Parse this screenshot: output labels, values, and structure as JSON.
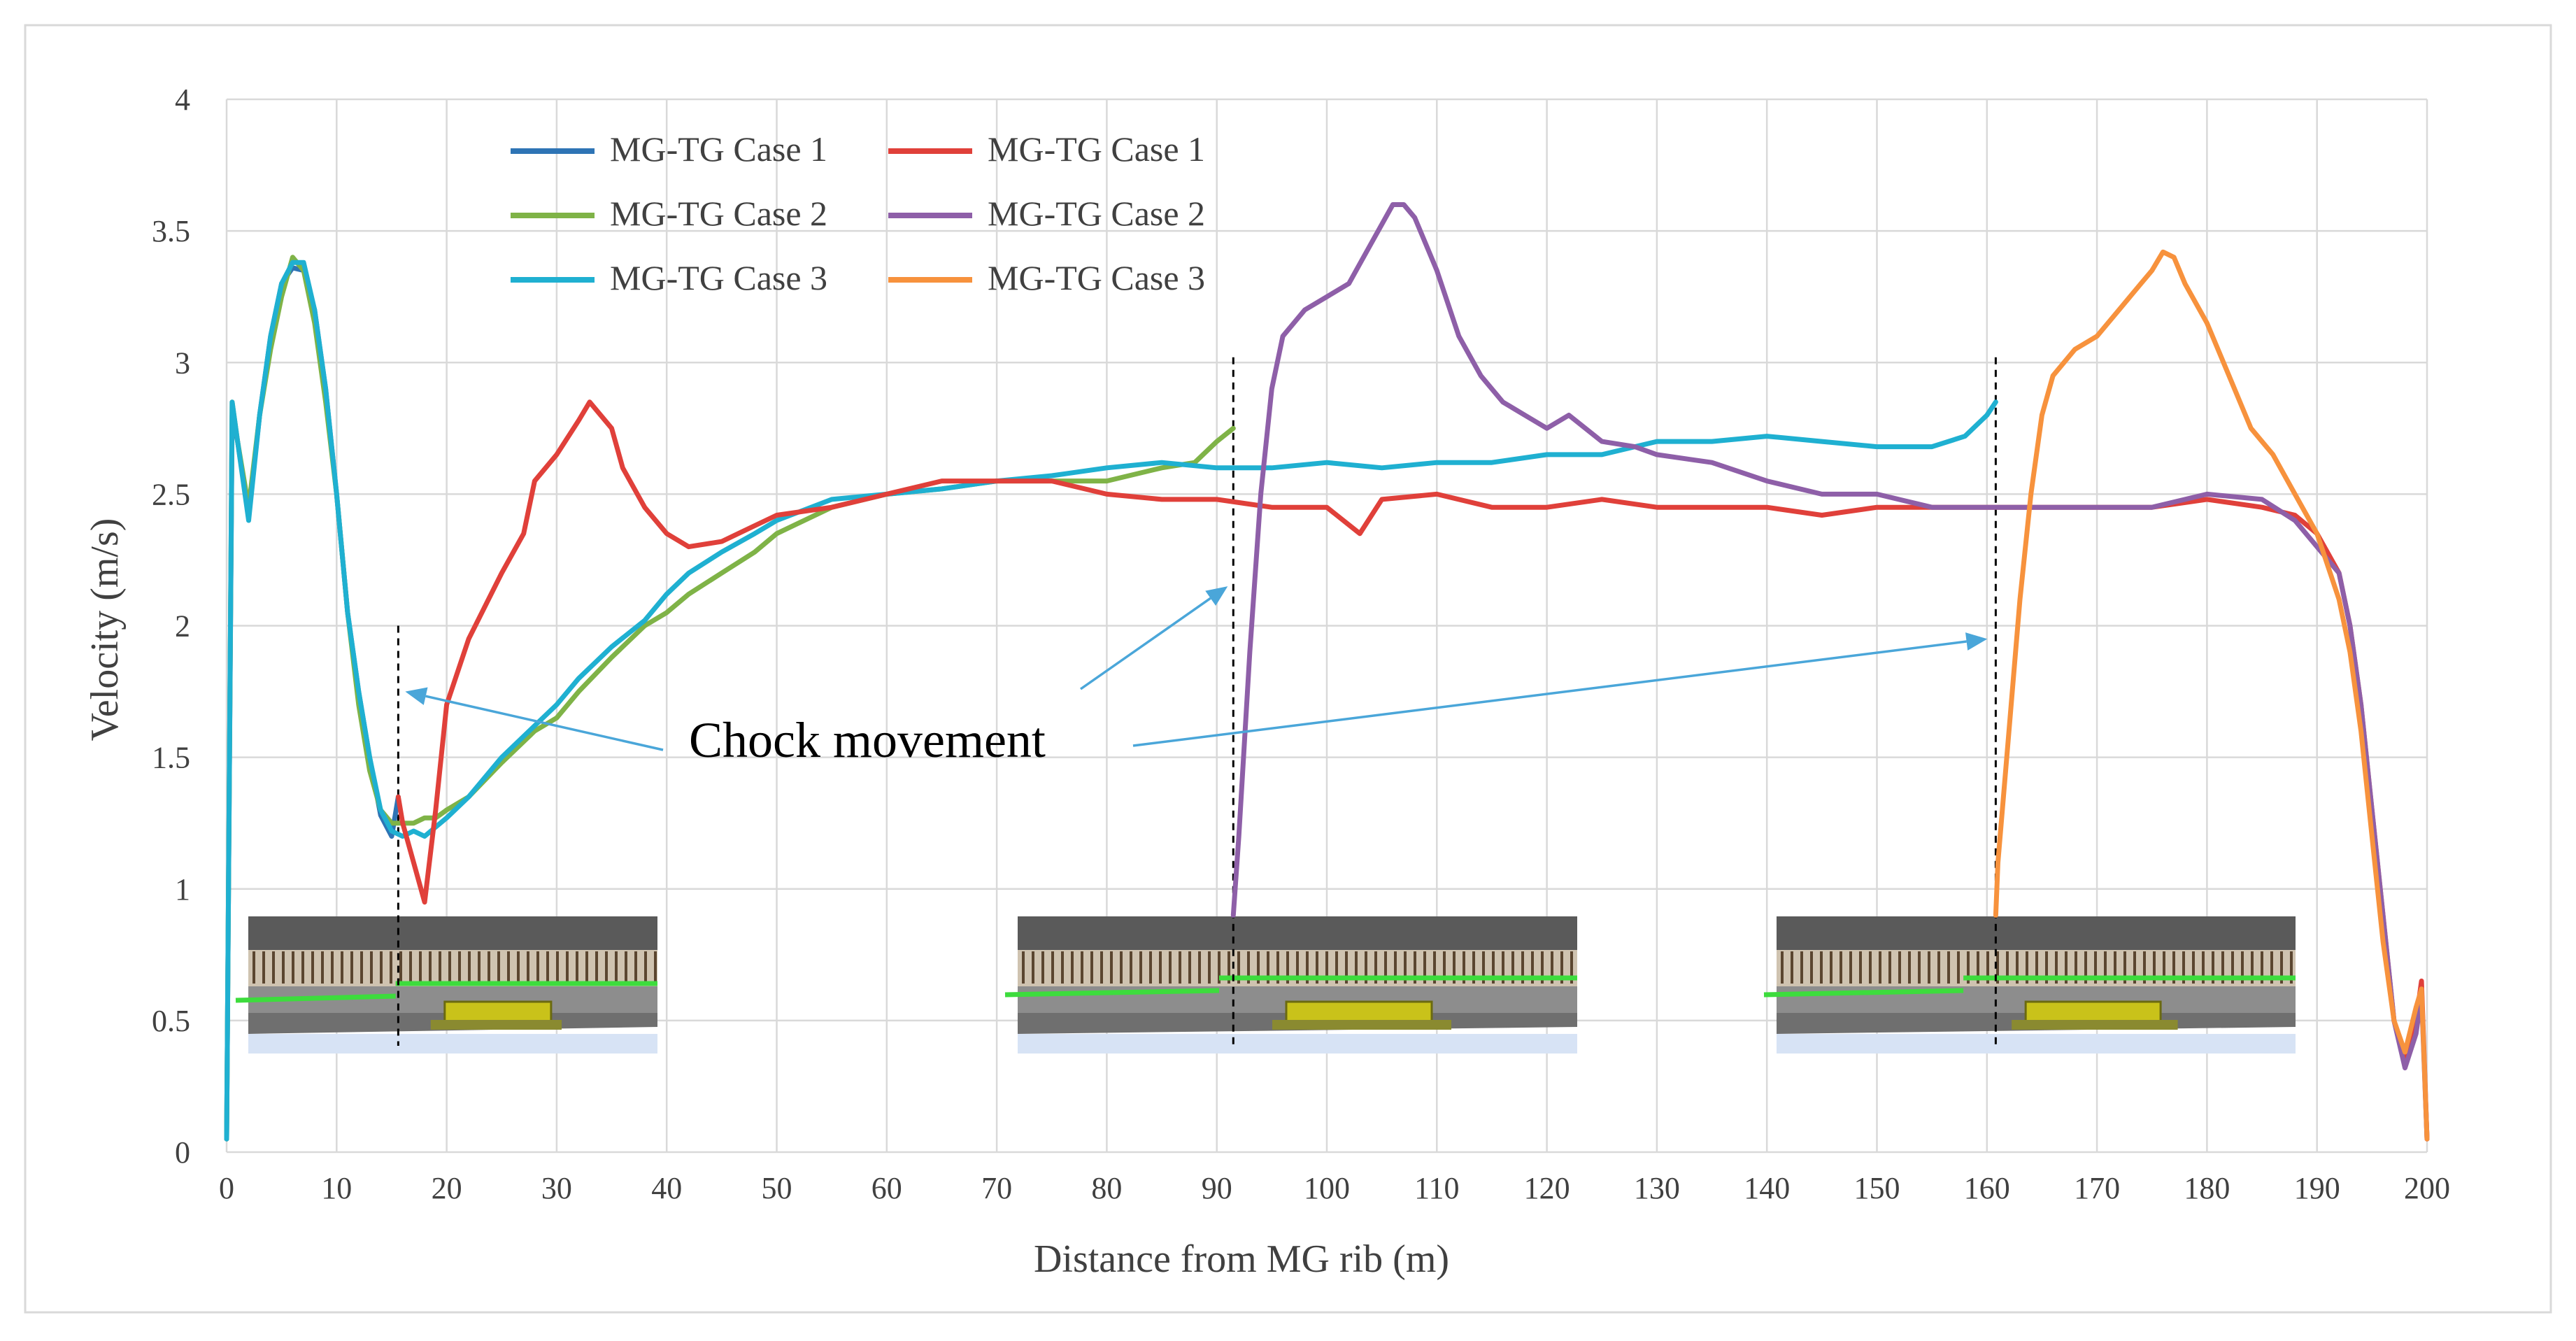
{
  "chart_data": {
    "type": "line",
    "title": "",
    "xlabel": "Distance from MG rib (m)",
    "ylabel": "Velocity (m/s)",
    "xlim": [
      0,
      200
    ],
    "ylim": [
      0,
      4
    ],
    "x_ticks": [
      "0",
      "10",
      "20",
      "30",
      "40",
      "50",
      "60",
      "70",
      "80",
      "90",
      "100",
      "110",
      "120",
      "130",
      "140",
      "150",
      "160",
      "170",
      "180",
      "190",
      "200"
    ],
    "y_ticks": [
      "0",
      "0.5",
      "1",
      "1.5",
      "2",
      "2.5",
      "3",
      "3.5",
      "4"
    ],
    "grid": true,
    "legend_position": "top-left",
    "series": [
      {
        "name": "MG-TG Case 1",
        "color": "#2e74b5",
        "points": [
          [
            0,
            0.05
          ],
          [
            0.5,
            2.8
          ],
          [
            1,
            2.7
          ],
          [
            2,
            2.42
          ],
          [
            3,
            2.8
          ],
          [
            4,
            3.1
          ],
          [
            5,
            3.3
          ],
          [
            6,
            3.36
          ],
          [
            7,
            3.35
          ],
          [
            8,
            3.2
          ],
          [
            9,
            2.9
          ],
          [
            10,
            2.5
          ],
          [
            11,
            2.05
          ],
          [
            12,
            1.75
          ],
          [
            13,
            1.5
          ],
          [
            14,
            1.28
          ],
          [
            15,
            1.2
          ],
          [
            15.6,
            1.35
          ]
        ]
      },
      {
        "name": "MG-TG Case 2",
        "color": "#7fb347",
        "points": [
          [
            0,
            0.05
          ],
          [
            0.5,
            2.85
          ],
          [
            1,
            2.7
          ],
          [
            2,
            2.45
          ],
          [
            3,
            2.8
          ],
          [
            4,
            3.05
          ],
          [
            5,
            3.25
          ],
          [
            6,
            3.4
          ],
          [
            7,
            3.35
          ],
          [
            8,
            3.15
          ],
          [
            9,
            2.85
          ],
          [
            10,
            2.5
          ],
          [
            11,
            2.05
          ],
          [
            12,
            1.7
          ],
          [
            13,
            1.45
          ],
          [
            14,
            1.3
          ],
          [
            15,
            1.25
          ],
          [
            16,
            1.25
          ],
          [
            17,
            1.25
          ],
          [
            18,
            1.27
          ],
          [
            19,
            1.27
          ],
          [
            20,
            1.3
          ],
          [
            22,
            1.35
          ],
          [
            25,
            1.48
          ],
          [
            28,
            1.6
          ],
          [
            30,
            1.65
          ],
          [
            32,
            1.75
          ],
          [
            35,
            1.88
          ],
          [
            38,
            2.0
          ],
          [
            40,
            2.05
          ],
          [
            42,
            2.12
          ],
          [
            45,
            2.2
          ],
          [
            48,
            2.28
          ],
          [
            50,
            2.35
          ],
          [
            55,
            2.45
          ],
          [
            60,
            2.5
          ],
          [
            65,
            2.52
          ],
          [
            70,
            2.55
          ],
          [
            75,
            2.55
          ],
          [
            80,
            2.55
          ],
          [
            85,
            2.6
          ],
          [
            88,
            2.62
          ],
          [
            90,
            2.7
          ],
          [
            91.5,
            2.75
          ]
        ]
      },
      {
        "name": "MG-TG Case 3",
        "color": "#1fb0d1",
        "points": [
          [
            0,
            0.05
          ],
          [
            0.5,
            2.85
          ],
          [
            1,
            2.7
          ],
          [
            2,
            2.4
          ],
          [
            3,
            2.8
          ],
          [
            4,
            3.1
          ],
          [
            5,
            3.3
          ],
          [
            6,
            3.38
          ],
          [
            7,
            3.38
          ],
          [
            8,
            3.2
          ],
          [
            9,
            2.9
          ],
          [
            10,
            2.5
          ],
          [
            11,
            2.05
          ],
          [
            12,
            1.75
          ],
          [
            13,
            1.5
          ],
          [
            14,
            1.3
          ],
          [
            15,
            1.22
          ],
          [
            16,
            1.2
          ],
          [
            17,
            1.22
          ],
          [
            18,
            1.2
          ],
          [
            20,
            1.27
          ],
          [
            22,
            1.35
          ],
          [
            25,
            1.5
          ],
          [
            28,
            1.62
          ],
          [
            30,
            1.7
          ],
          [
            32,
            1.8
          ],
          [
            35,
            1.92
          ],
          [
            38,
            2.02
          ],
          [
            40,
            2.12
          ],
          [
            42,
            2.2
          ],
          [
            45,
            2.28
          ],
          [
            48,
            2.35
          ],
          [
            50,
            2.4
          ],
          [
            55,
            2.48
          ],
          [
            60,
            2.5
          ],
          [
            65,
            2.52
          ],
          [
            70,
            2.55
          ],
          [
            75,
            2.57
          ],
          [
            80,
            2.6
          ],
          [
            85,
            2.62
          ],
          [
            90,
            2.6
          ],
          [
            95,
            2.6
          ],
          [
            100,
            2.62
          ],
          [
            105,
            2.6
          ],
          [
            110,
            2.62
          ],
          [
            115,
            2.62
          ],
          [
            120,
            2.65
          ],
          [
            125,
            2.65
          ],
          [
            130,
            2.7
          ],
          [
            135,
            2.7
          ],
          [
            140,
            2.72
          ],
          [
            145,
            2.7
          ],
          [
            150,
            2.68
          ],
          [
            155,
            2.68
          ],
          [
            158,
            2.72
          ],
          [
            160,
            2.8
          ],
          [
            160.8,
            2.85
          ]
        ]
      },
      {
        "name": "MG-TG Case 1",
        "color": "#e0403a",
        "points": [
          [
            15.6,
            1.35
          ],
          [
            16,
            1.25
          ],
          [
            17,
            1.1
          ],
          [
            18,
            0.95
          ],
          [
            19,
            1.3
          ],
          [
            20,
            1.7
          ],
          [
            22,
            1.95
          ],
          [
            25,
            2.2
          ],
          [
            27,
            2.35
          ],
          [
            28,
            2.55
          ],
          [
            30,
            2.65
          ],
          [
            32,
            2.78
          ],
          [
            33,
            2.85
          ],
          [
            34,
            2.8
          ],
          [
            35,
            2.75
          ],
          [
            36,
            2.6
          ],
          [
            38,
            2.45
          ],
          [
            40,
            2.35
          ],
          [
            42,
            2.3
          ],
          [
            45,
            2.32
          ],
          [
            48,
            2.38
          ],
          [
            50,
            2.42
          ],
          [
            55,
            2.45
          ],
          [
            60,
            2.5
          ],
          [
            65,
            2.55
          ],
          [
            70,
            2.55
          ],
          [
            75,
            2.55
          ],
          [
            80,
            2.5
          ],
          [
            85,
            2.48
          ],
          [
            90,
            2.48
          ],
          [
            95,
            2.45
          ],
          [
            100,
            2.45
          ],
          [
            103,
            2.35
          ],
          [
            105,
            2.48
          ],
          [
            110,
            2.5
          ],
          [
            115,
            2.45
          ],
          [
            120,
            2.45
          ],
          [
            125,
            2.48
          ],
          [
            130,
            2.45
          ],
          [
            135,
            2.45
          ],
          [
            140,
            2.45
          ],
          [
            145,
            2.42
          ],
          [
            150,
            2.45
          ],
          [
            155,
            2.45
          ],
          [
            160,
            2.45
          ],
          [
            165,
            2.45
          ],
          [
            170,
            2.45
          ],
          [
            175,
            2.45
          ],
          [
            180,
            2.48
          ],
          [
            185,
            2.45
          ],
          [
            188,
            2.42
          ],
          [
            190,
            2.35
          ],
          [
            192,
            2.2
          ],
          [
            193,
            2.0
          ],
          [
            194,
            1.7
          ],
          [
            195,
            1.3
          ],
          [
            196,
            0.9
          ],
          [
            197,
            0.5
          ],
          [
            198,
            0.35
          ],
          [
            199,
            0.5
          ],
          [
            199.5,
            0.65
          ],
          [
            200,
            0.05
          ]
        ]
      },
      {
        "name": "MG-TG Case 2",
        "color": "#8e5fa8",
        "points": [
          [
            91.5,
            0.9
          ],
          [
            92,
            1.2
          ],
          [
            93,
            1.9
          ],
          [
            94,
            2.5
          ],
          [
            95,
            2.9
          ],
          [
            96,
            3.1
          ],
          [
            98,
            3.2
          ],
          [
            100,
            3.25
          ],
          [
            102,
            3.3
          ],
          [
            104,
            3.45
          ],
          [
            106,
            3.6
          ],
          [
            107,
            3.6
          ],
          [
            108,
            3.55
          ],
          [
            110,
            3.35
          ],
          [
            112,
            3.1
          ],
          [
            114,
            2.95
          ],
          [
            116,
            2.85
          ],
          [
            118,
            2.8
          ],
          [
            120,
            2.75
          ],
          [
            122,
            2.8
          ],
          [
            125,
            2.7
          ],
          [
            128,
            2.68
          ],
          [
            130,
            2.65
          ],
          [
            135,
            2.62
          ],
          [
            140,
            2.55
          ],
          [
            145,
            2.5
          ],
          [
            150,
            2.5
          ],
          [
            155,
            2.45
          ],
          [
            160,
            2.45
          ],
          [
            165,
            2.45
          ],
          [
            170,
            2.45
          ],
          [
            175,
            2.45
          ],
          [
            180,
            2.5
          ],
          [
            185,
            2.48
          ],
          [
            188,
            2.4
          ],
          [
            190,
            2.3
          ],
          [
            192,
            2.2
          ],
          [
            193,
            2.0
          ],
          [
            194,
            1.7
          ],
          [
            195,
            1.3
          ],
          [
            196,
            0.9
          ],
          [
            197,
            0.5
          ],
          [
            198,
            0.32
          ],
          [
            199,
            0.45
          ],
          [
            199.5,
            0.6
          ],
          [
            200,
            0.05
          ]
        ]
      },
      {
        "name": "MG-TG Case 3",
        "color": "#f7923d",
        "points": [
          [
            160.8,
            0.9
          ],
          [
            161,
            1.1
          ],
          [
            162,
            1.6
          ],
          [
            163,
            2.1
          ],
          [
            164,
            2.5
          ],
          [
            165,
            2.8
          ],
          [
            166,
            2.95
          ],
          [
            168,
            3.05
          ],
          [
            170,
            3.1
          ],
          [
            172,
            3.2
          ],
          [
            174,
            3.3
          ],
          [
            175,
            3.35
          ],
          [
            176,
            3.42
          ],
          [
            177,
            3.4
          ],
          [
            178,
            3.3
          ],
          [
            180,
            3.15
          ],
          [
            182,
            2.95
          ],
          [
            184,
            2.75
          ],
          [
            186,
            2.65
          ],
          [
            188,
            2.5
          ],
          [
            190,
            2.35
          ],
          [
            192,
            2.1
          ],
          [
            193,
            1.9
          ],
          [
            194,
            1.6
          ],
          [
            195,
            1.2
          ],
          [
            196,
            0.8
          ],
          [
            197,
            0.5
          ],
          [
            198,
            0.38
          ],
          [
            199,
            0.55
          ],
          [
            199.5,
            0.62
          ],
          [
            200,
            0.05
          ]
        ]
      }
    ],
    "annotations": [
      {
        "text": "Chock movement",
        "arrow_targets_x": [
          15.6,
          91.5,
          160.8
        ]
      }
    ],
    "chock_markers_x": [
      15.6,
      91.5,
      160.8
    ]
  }
}
